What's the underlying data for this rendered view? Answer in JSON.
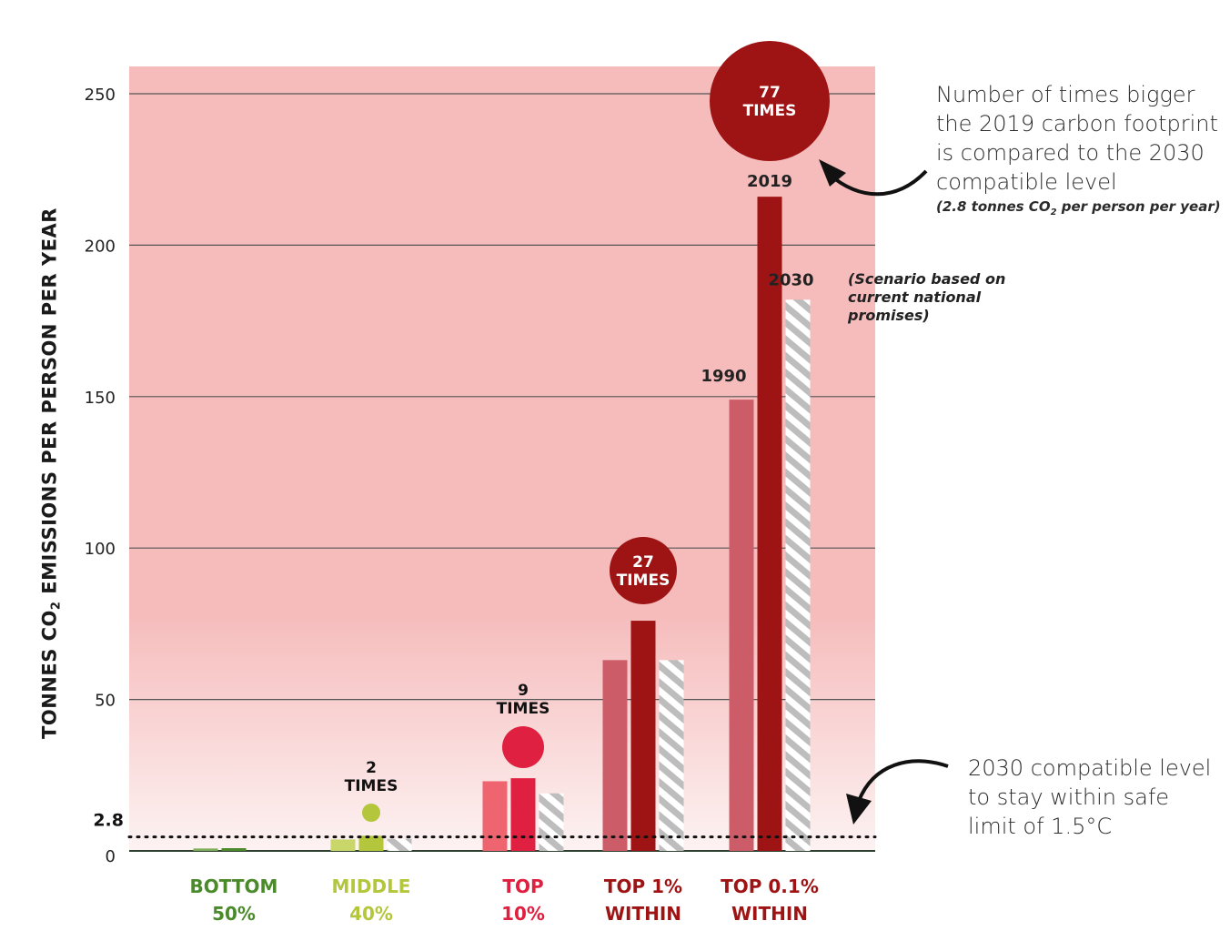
{
  "chart_data": {
    "type": "bar",
    "ylabel_parts": [
      "TONNES CO",
      "2",
      " EMISSIONS PER PERSON PER YEAR"
    ],
    "ylim": [
      0,
      250
    ],
    "yticks": [
      "0",
      "50",
      "100",
      "150",
      "200",
      "250"
    ],
    "reference_line": {
      "value": 2.8,
      "label": "2.8"
    },
    "groups": [
      {
        "label_line1": "BOTTOM",
        "label_line2": "50%",
        "color": "#4a8a2a",
        "values": {
          "1990": 0.8,
          "2019": 0.9,
          "2030": null
        },
        "times": null
      },
      {
        "label_line1": "MIDDLE",
        "label_line2": "40%",
        "color": "#b3c63c",
        "values": {
          "1990": 3.8,
          "2019": 5,
          "2030": 4
        },
        "times": {
          "number": "2",
          "word": "TIMES"
        }
      },
      {
        "label_line1": "TOP",
        "label_line2": "10%",
        "color": "#e02040",
        "values": {
          "1990": 23,
          "2019": 24,
          "2030": 19
        },
        "times": {
          "number": "9",
          "word": "TIMES"
        }
      },
      {
        "label_line1": "TOP 1%",
        "label_line2": "WITHIN",
        "color": "#9e1414",
        "values": {
          "1990": 63,
          "2019": 76,
          "2030": 63
        },
        "times": {
          "number": "27",
          "word": "TIMES"
        }
      },
      {
        "label_line1": "TOP 0.1%",
        "label_line2": "WITHIN",
        "color": "#9e1414",
        "values": {
          "1990": 149,
          "2019": 216,
          "2030": 182
        },
        "times": {
          "number": "77",
          "word": "TIMES"
        }
      }
    ],
    "series_labels": {
      "1990": "1990",
      "2019": "2019",
      "2030": "2030"
    },
    "colors": {
      "background_top": "#f6bcbc",
      "background_bottom": "#fdf2f2",
      "dark_red": "#9e1414",
      "mid_red": "#cc5c68",
      "stripe": "#bdbdbd"
    }
  },
  "annotations": {
    "top_text": "Number of times bigger the 2019 carbon footprint is compared to the 2030 compatible level",
    "top_note_pre": "(2.8 tonnes CO",
    "top_note_sub": "2",
    "top_note_post": " per person per year)",
    "scenario_note": "(Scenario based on current national promises)",
    "bottom_text": "2030 compatible level to stay within safe limit of 1.5°C"
  }
}
